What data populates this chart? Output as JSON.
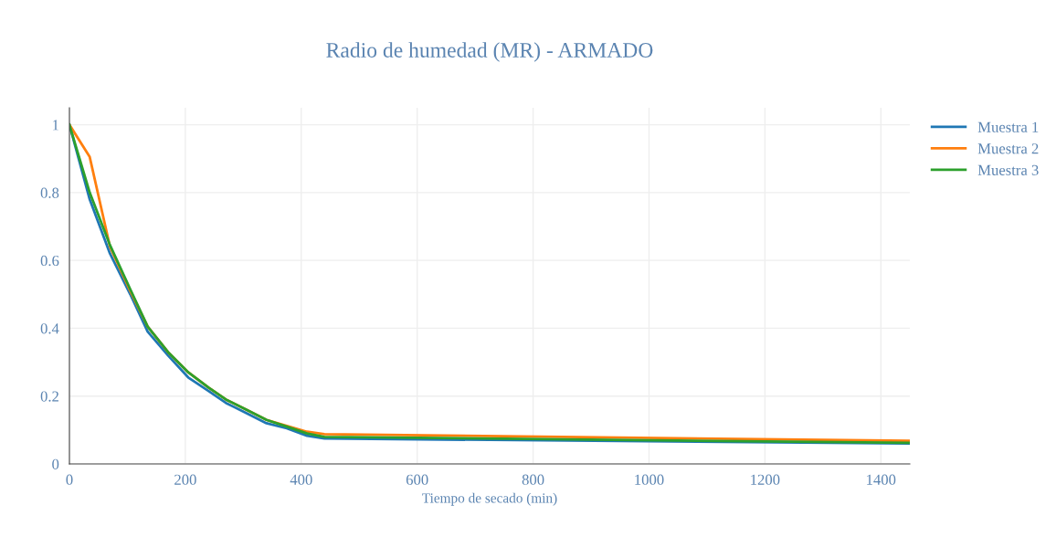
{
  "chart_data": {
    "type": "line",
    "title": "Radio de humedad (MR) - ARMADO",
    "xlabel": "Tiempo de secado (min)",
    "x": [
      0,
      35,
      70,
      105,
      135,
      170,
      205,
      240,
      270,
      305,
      340,
      375,
      410,
      440,
      1450
    ],
    "series": [
      {
        "name": "Muestra 1",
        "color": "#1f77b4",
        "values": [
          1,
          0.78,
          0.62,
          0.5,
          0.39,
          0.32,
          0.255,
          0.215,
          0.18,
          0.15,
          0.12,
          0.105,
          0.083,
          0.075,
          0.06
        ]
      },
      {
        "name": "Muestra 2",
        "color": "#ff7f0e",
        "values": [
          1,
          0.905,
          0.64,
          0.51,
          0.405,
          0.33,
          0.27,
          0.225,
          0.19,
          0.16,
          0.13,
          0.112,
          0.095,
          0.088,
          0.068
        ]
      },
      {
        "name": "Muestra 3",
        "color": "#2ca02c",
        "values": [
          1,
          0.8,
          0.645,
          0.515,
          0.405,
          0.33,
          0.27,
          0.225,
          0.19,
          0.16,
          0.13,
          0.11,
          0.09,
          0.08,
          0.062
        ]
      }
    ],
    "xlim": [
      0,
      1450
    ],
    "xticks": [
      0,
      200,
      400,
      600,
      800,
      1000,
      1200,
      1400
    ],
    "ylim": [
      0,
      1.05
    ],
    "yticks": [
      0,
      0.2,
      0.4,
      0.6,
      0.8,
      1
    ],
    "grid": true,
    "legend": "top right",
    "marker": "none",
    "line_style": "solid"
  }
}
